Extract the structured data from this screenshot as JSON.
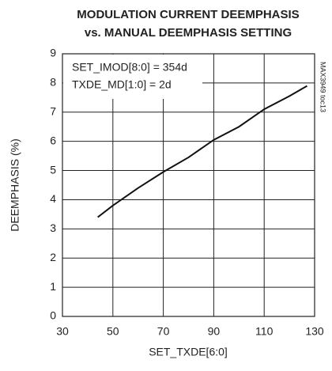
{
  "chart_data": {
    "type": "line",
    "title": "MODULATION CURRENT DEEMPHASIS",
    "subtitle": "vs. MANUAL DEEMPHASIS SETTING",
    "x_label": "SET_TXDE[6:0]",
    "y_label": "DEEMPHASIS (%)",
    "annotations": [
      "SET_IMOD[8:0] = 354d",
      "TXDE_MD[1:0] = 2d"
    ],
    "side_note": "MAX3949 toc13",
    "xlim": [
      30,
      130
    ],
    "xticks": [
      30,
      50,
      70,
      90,
      110,
      130
    ],
    "ylim": [
      0,
      9
    ],
    "yticks": [
      0,
      1,
      2,
      3,
      4,
      5,
      6,
      7,
      8,
      9
    ],
    "grid": true,
    "series": [
      {
        "color": "#111111",
        "x": [
          44,
          50,
          60,
          70,
          80,
          90,
          100,
          110,
          120,
          127
        ],
        "values": [
          3.4,
          3.8,
          4.4,
          4.95,
          5.45,
          6.05,
          6.5,
          7.1,
          7.55,
          7.9
        ]
      }
    ]
  }
}
